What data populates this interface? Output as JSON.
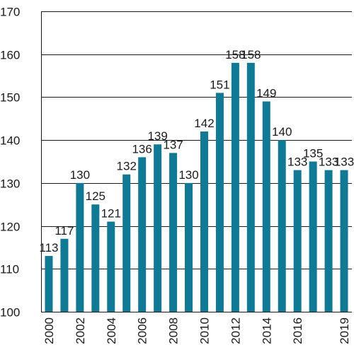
{
  "chart_data": {
    "type": "bar",
    "title": "",
    "xlabel": "",
    "ylabel": "",
    "categories": [
      "2000",
      "2001",
      "2002",
      "2003",
      "2004",
      "2005",
      "2006",
      "2007",
      "2008",
      "2009",
      "2010",
      "2011",
      "2012",
      "2013",
      "2014",
      "2015",
      "2016",
      "2017",
      "2018",
      "2019"
    ],
    "values": [
      113,
      117,
      130,
      125,
      121,
      132,
      136,
      139,
      137,
      130,
      142,
      151,
      158,
      158,
      149,
      140,
      133,
      135,
      133,
      133
    ],
    "data_labels": [
      "113",
      "117",
      "130",
      "125",
      "121",
      "132",
      "136",
      "139",
      "137",
      "130",
      "142",
      "151",
      "158",
      "158",
      "149",
      "140",
      "133",
      "135",
      "133",
      "133"
    ],
    "x_tick_labels": [
      "2000",
      "",
      "2002",
      "",
      "2004",
      "",
      "2006",
      "",
      "2008",
      "",
      "2010",
      "",
      "2012",
      "",
      "2014",
      "",
      "2016",
      "",
      "",
      "2019"
    ],
    "ylim": [
      100,
      170
    ],
    "y_ticks": [
      100,
      110,
      120,
      130,
      140,
      150,
      160,
      170
    ],
    "y_tick_labels": [
      "100",
      "110",
      "120",
      "130",
      "140",
      "150",
      "160",
      "170"
    ],
    "grid": true,
    "bar_color": "#0e7a96"
  }
}
